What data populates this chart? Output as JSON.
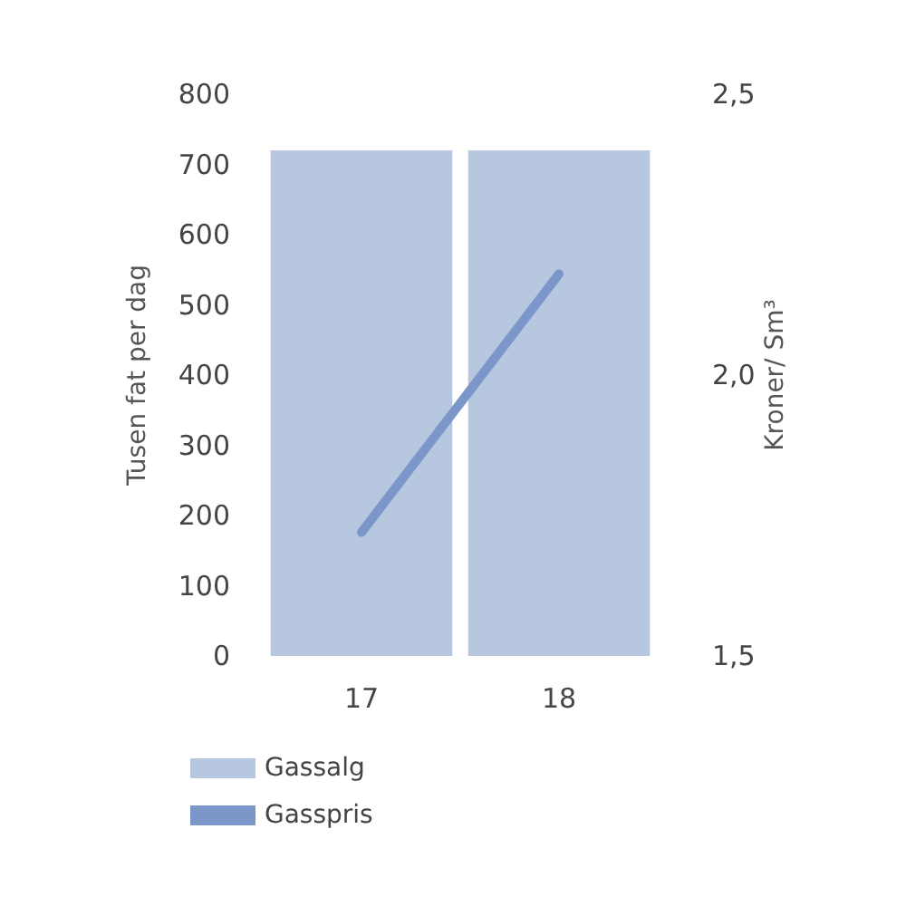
{
  "chart_data": {
    "type": "bar",
    "categories": [
      "17",
      "18"
    ],
    "series": [
      {
        "name": "Gassalg",
        "color": "#b8c7e0",
        "values": [
          720,
          720
        ]
      },
      {
        "name": "Gasspris",
        "type": "line",
        "axis": "y2",
        "color": "#7b96c8",
        "values": [
          1.72,
          2.18
        ]
      }
    ],
    "ylabel": "Tusen fat per dag",
    "y2label": "Kroner/ Sm³",
    "ylim": [
      0,
      800
    ],
    "yticks": [
      0,
      100,
      200,
      300,
      400,
      500,
      600,
      700,
      800
    ],
    "y2lim": [
      1.5,
      2.5
    ],
    "y2ticks": [
      {
        "value": 1.5,
        "label": "1,5"
      },
      {
        "value": 2,
        "label": "2,0"
      },
      {
        "value": 2.5,
        "label": "2,5"
      }
    ],
    "legend": "bottom left",
    "marker": "none",
    "grid": false
  }
}
